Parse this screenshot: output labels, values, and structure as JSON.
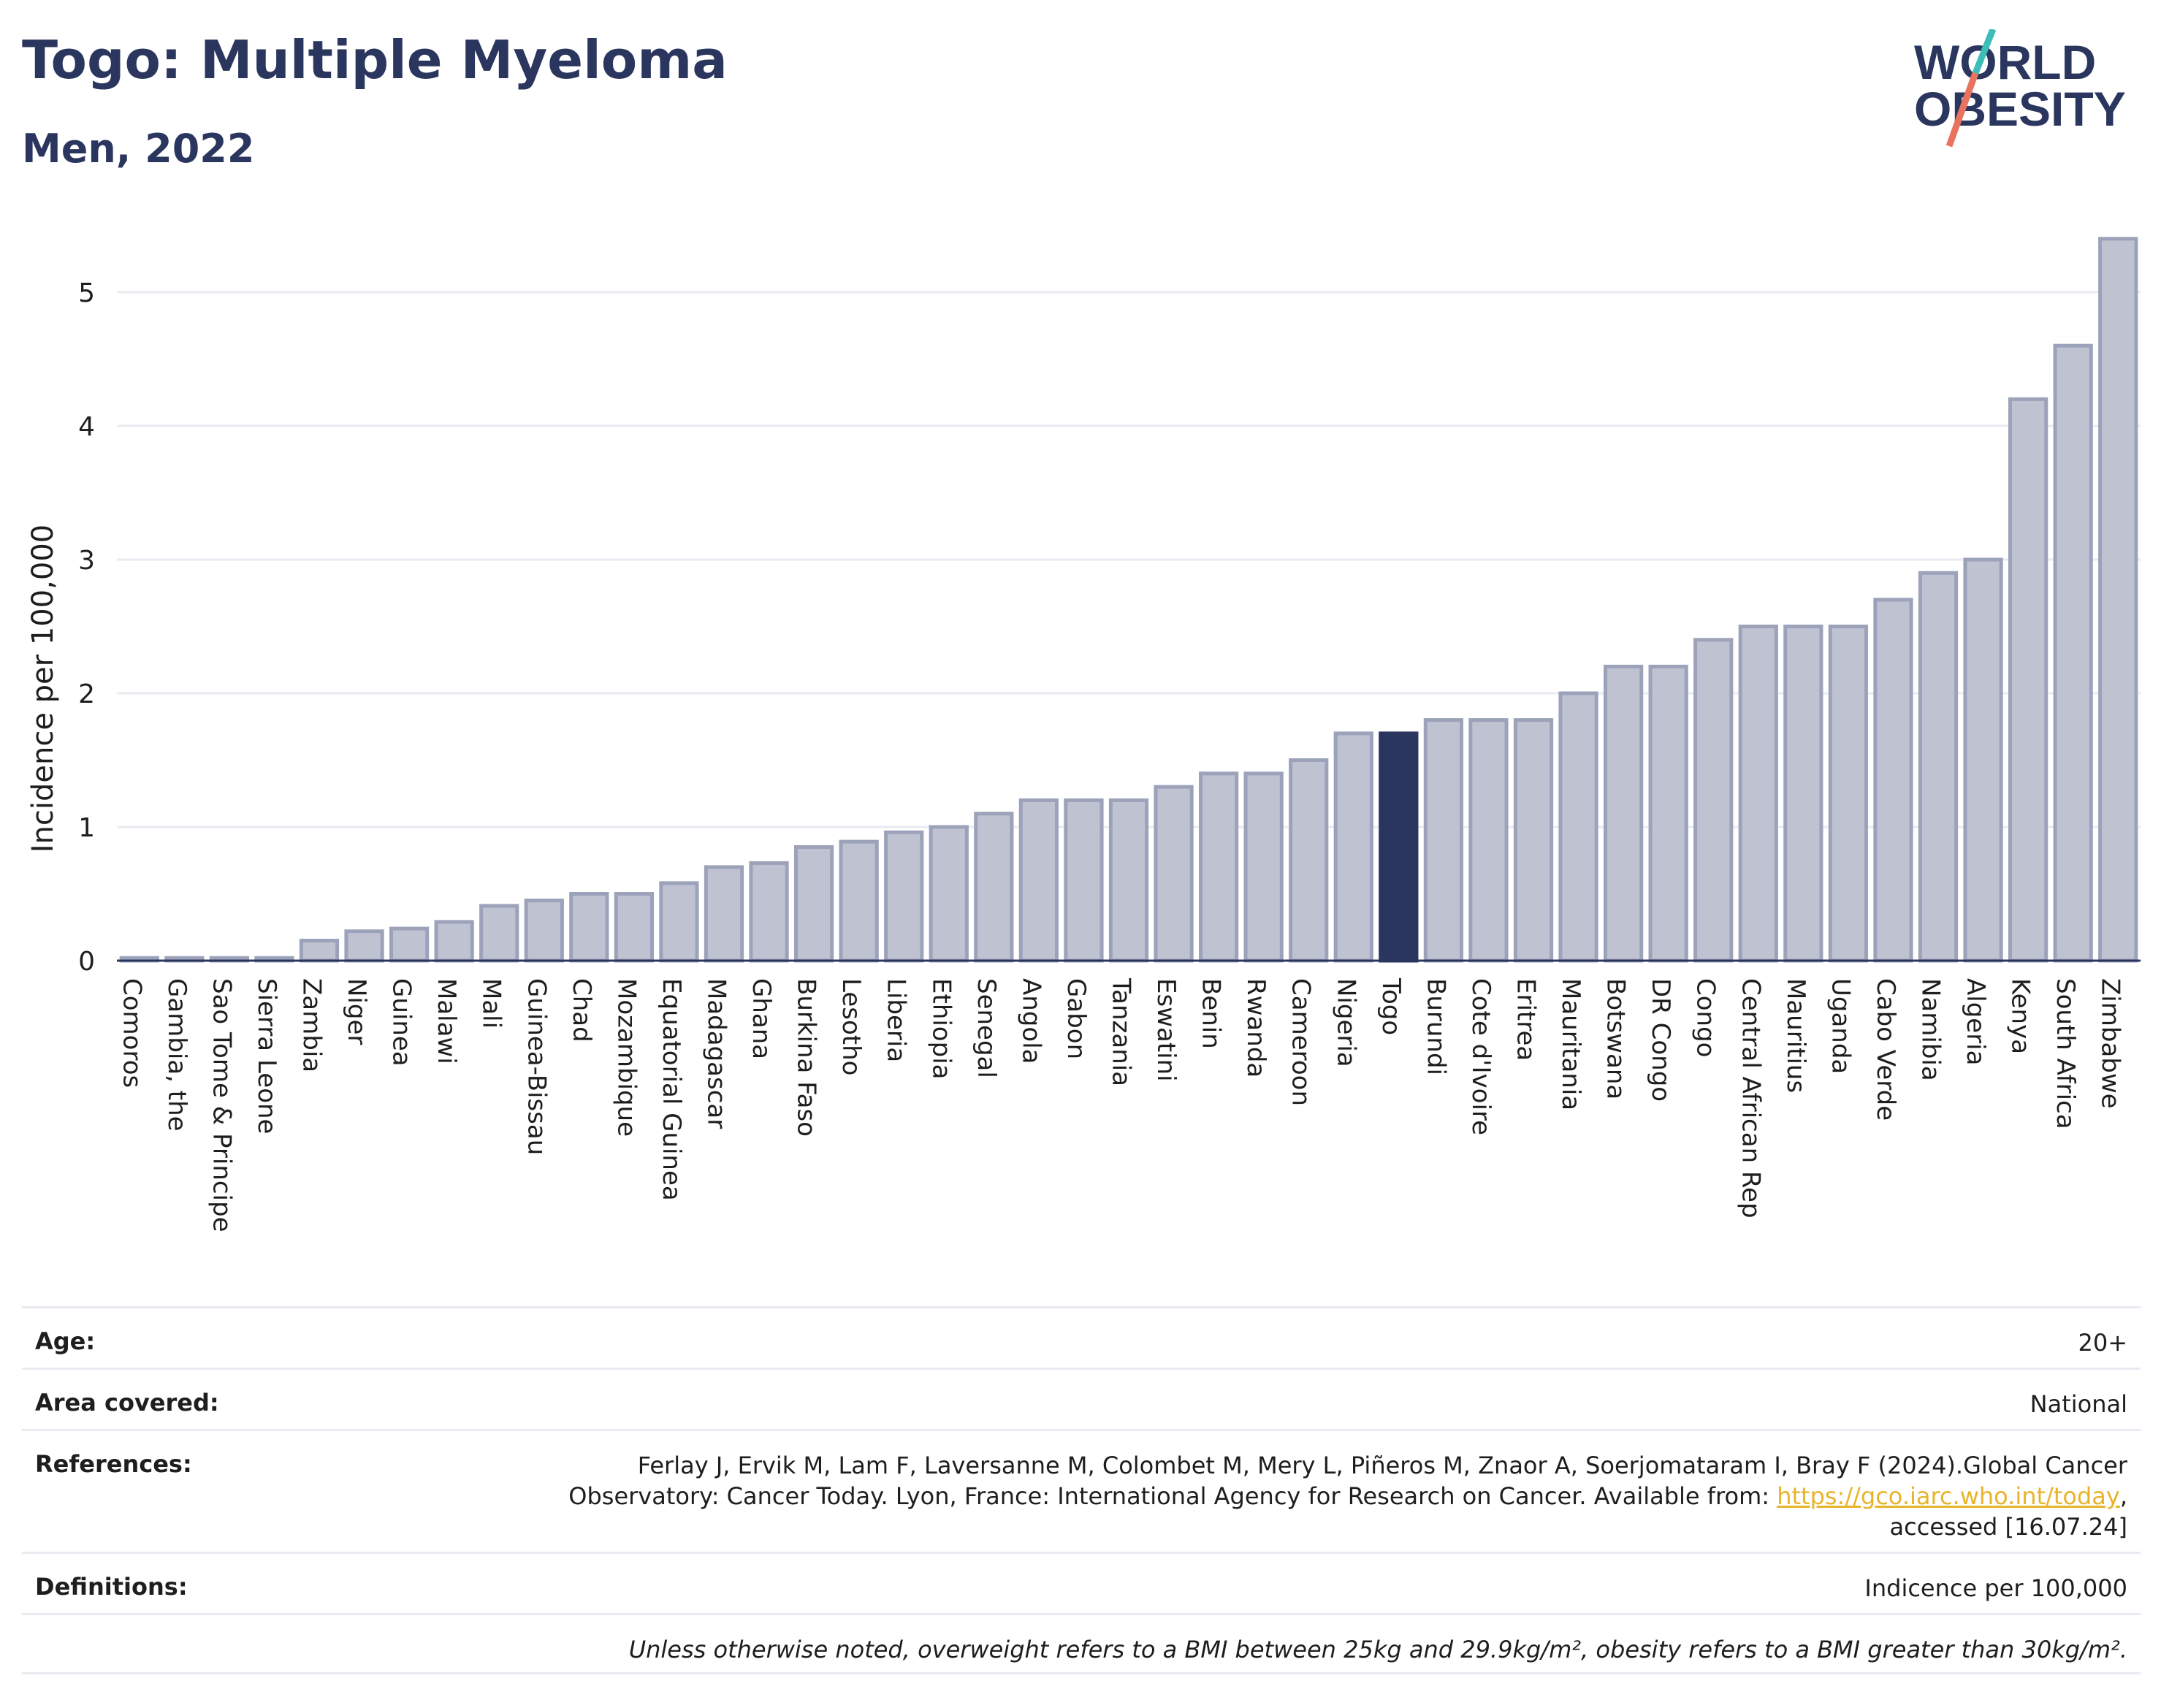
{
  "header": {
    "title": "Togo: Multiple Myeloma",
    "subtitle": "Men, 2022",
    "logo_text_top": "WORLD",
    "logo_text_bottom": "OBESITY"
  },
  "colors": {
    "bar_default": "#bec2d1",
    "bar_default_border": "#9ca2ba",
    "bar_highlight": "#2b365f",
    "grid": "#e8ebf1",
    "text": "#2b365f",
    "link": "#e8b42b",
    "logo_teal": "#3dbdb7",
    "logo_coral": "#e8735f"
  },
  "chart_data": {
    "type": "bar",
    "title": "Togo: Multiple Myeloma",
    "subtitle": "Men, 2022",
    "ylabel": "Incidence per 100,000",
    "xlabel": "",
    "ylim": [
      0,
      5.5
    ],
    "yticks": [
      0,
      1,
      2,
      3,
      4,
      5
    ],
    "grid": true,
    "highlight": "Togo",
    "categories": [
      "Comoros",
      "Gambia, the",
      "Sao Tome & Principe",
      "Sierra Leone",
      "Zambia",
      "Niger",
      "Guinea",
      "Malawi",
      "Mali",
      "Guinea-Bissau",
      "Chad",
      "Mozambique",
      "Equatorial Guinea",
      "Madagascar",
      "Ghana",
      "Burkina Faso",
      "Lesotho",
      "Liberia",
      "Ethiopia",
      "Senegal",
      "Angola",
      "Gabon",
      "Tanzania",
      "Eswatini",
      "Benin",
      "Rwanda",
      "Cameroon",
      "Nigeria",
      "Togo",
      "Burundi",
      "Cote d'Ivoire",
      "Eritrea",
      "Mauritania",
      "Botswana",
      "DR Congo",
      "Congo",
      "Central African Rep",
      "Mauritius",
      "Uganda",
      "Cabo Verde",
      "Namibia",
      "Algeria",
      "Kenya",
      "South Africa",
      "Zimbabwe"
    ],
    "values": [
      0.02,
      0.02,
      0.02,
      0.02,
      0.15,
      0.22,
      0.24,
      0.29,
      0.41,
      0.45,
      0.5,
      0.5,
      0.58,
      0.7,
      0.73,
      0.85,
      0.89,
      0.96,
      1.0,
      1.1,
      1.2,
      1.2,
      1.2,
      1.3,
      1.4,
      1.4,
      1.5,
      1.7,
      1.7,
      1.8,
      1.8,
      1.8,
      2.0,
      2.2,
      2.2,
      2.4,
      2.5,
      2.5,
      2.5,
      2.7,
      2.9,
      3.0,
      4.2,
      4.6,
      5.4
    ]
  },
  "meta": {
    "age_label": "Age:",
    "age_value": "20+",
    "area_label": "Area covered:",
    "area_value": "National",
    "references_label": "References:",
    "references_line1": "Ferlay J, Ervik M, Lam F, Laversanne M, Colombet M, Mery L, Piñeros M, Znaor A, Soerjomataram I, Bray F (2024).Global Cancer",
    "references_line2": "Observatory: Cancer Today. Lyon, France: International Agency for Research on Cancer. Available from:",
    "references_link": "https://gco.iarc.who.int/today",
    "references_line3": "accessed [16.07.24]",
    "definitions_label": "Definitions:",
    "definitions_value": "Indicence per 100,000",
    "note": "Unless otherwise noted, overweight refers to a BMI between 25kg and 29.9kg/m², obesity refers to a BMI greater than 30kg/m²."
  }
}
